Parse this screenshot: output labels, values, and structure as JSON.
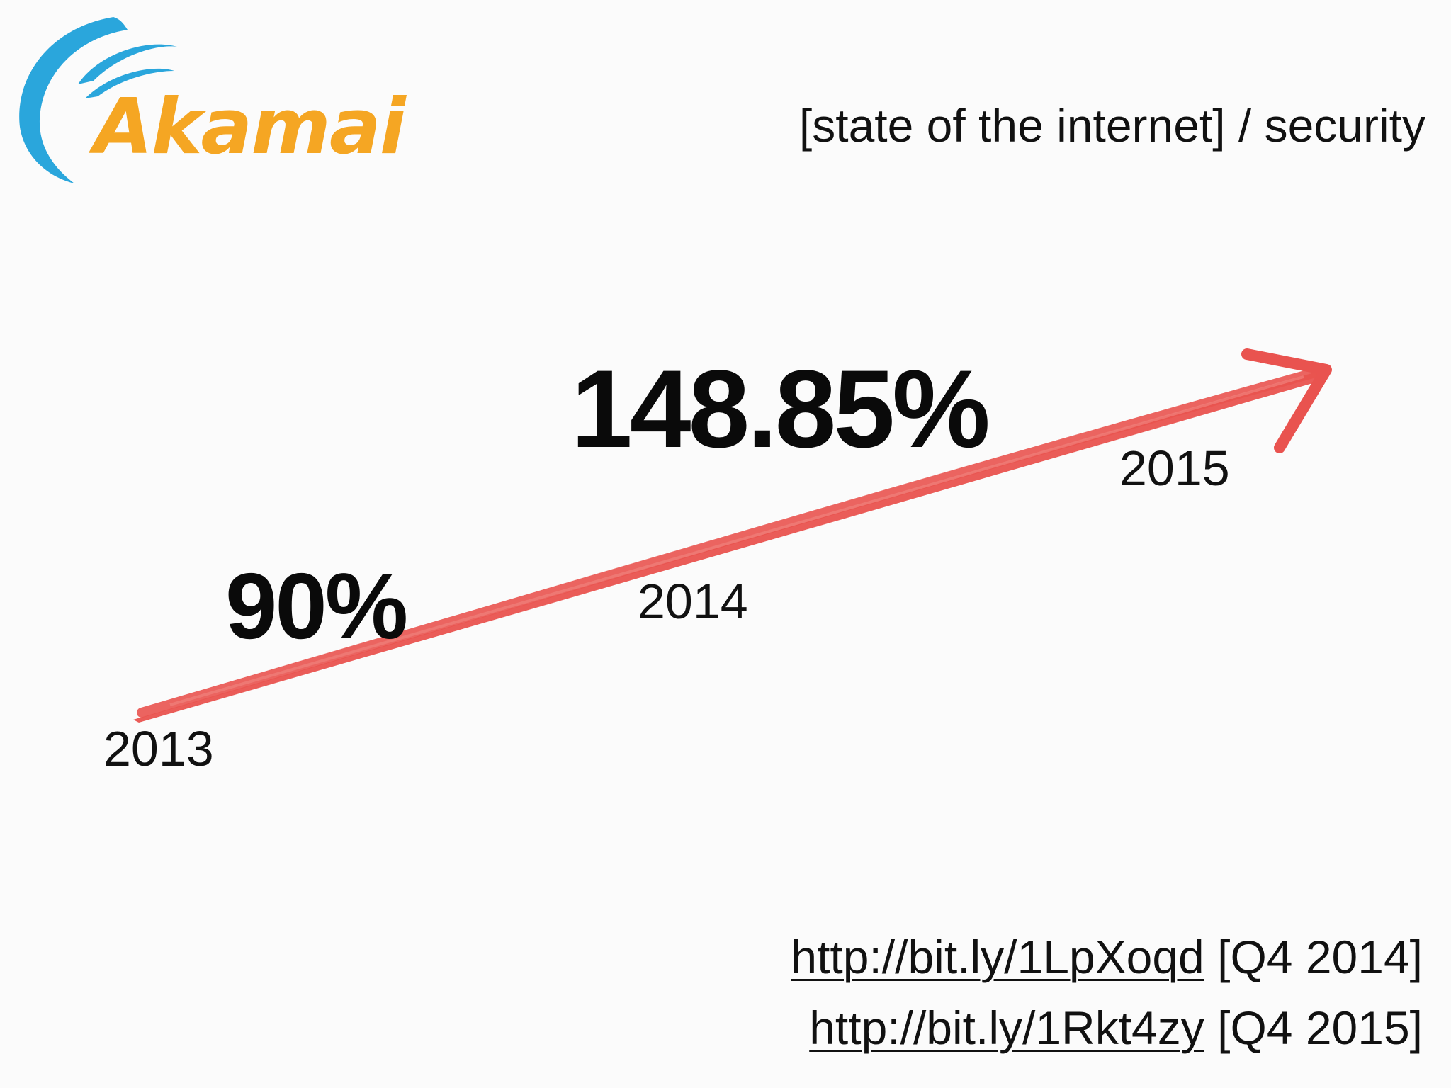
{
  "header": {
    "title": "[state of the internet] / security"
  },
  "logo": {
    "text": "Akamai",
    "icon": "akamai-swoosh-icon",
    "colors": {
      "swoosh": "#2aa6dc",
      "wordmark": "#f5a623"
    }
  },
  "growth": {
    "points": [
      {
        "year": "2013",
        "stat": "90%"
      },
      {
        "year": "2014",
        "stat": "148.85%"
      },
      {
        "year": "2015"
      }
    ],
    "arrow_color": "#e9534f"
  },
  "sources": [
    {
      "link_text": "http://bit.ly/1LpXoqd",
      "note": "[Q4 2014]"
    },
    {
      "link_text": "http://bit.ly/1Rkt4zy",
      "note": "[Q4 2015]"
    }
  ]
}
